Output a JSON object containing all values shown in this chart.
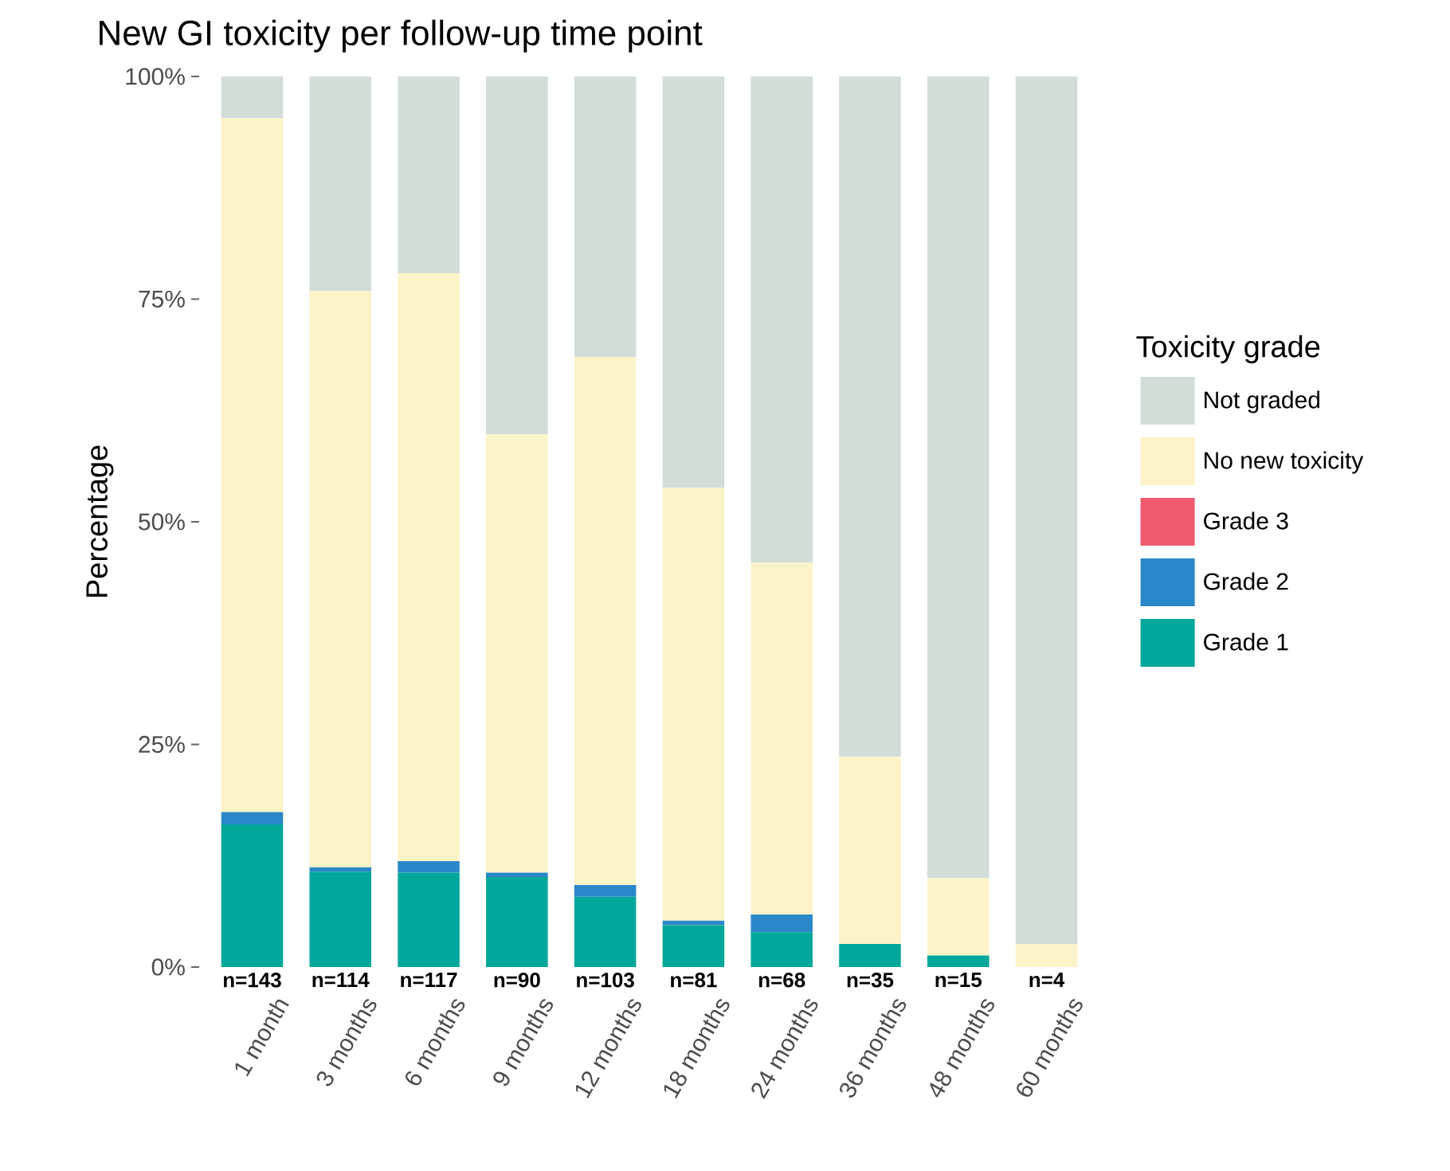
{
  "chart_data": {
    "type": "bar",
    "stacked": true,
    "title": "New GI toxicity per follow-up time point",
    "ylabel": "Percentage",
    "legend_title": "Toxicity grade",
    "legend": "right",
    "categories": [
      "1 month",
      "3 months",
      "6 months",
      "9 months",
      "12 months",
      "18 months",
      "24 months",
      "36 months",
      "48 months",
      "60 months"
    ],
    "series": [
      {
        "name": "Grade 1",
        "color": "#00a79a",
        "values": [
          16.0,
          10.7,
          10.6,
          10.1,
          7.9,
          4.7,
          3.9,
          2.6,
          1.3,
          0
        ]
      },
      {
        "name": "Grade 2",
        "color": "#2a88c8",
        "values": [
          1.4,
          0.5,
          1.3,
          0.5,
          1.3,
          0.5,
          2.0,
          0,
          0,
          0
        ]
      },
      {
        "name": "Grade 3",
        "color": "#f05a6e",
        "values": [
          0,
          0,
          0,
          0,
          0,
          0,
          0,
          0,
          0,
          0
        ]
      },
      {
        "name": "No new toxicity",
        "color": "#fdf3c8",
        "values": [
          77.9,
          64.7,
          66.0,
          49.2,
          59.3,
          48.6,
          39.5,
          21.0,
          8.7,
          2.6
        ]
      },
      {
        "name": "Not graded",
        "color": "#d3ddd7",
        "values": [
          4.7,
          24.1,
          22.1,
          40.2,
          31.5,
          46.2,
          54.6,
          76.4,
          90.0,
          97.4
        ]
      }
    ],
    "ylim": [
      0,
      100
    ],
    "yticks": [
      {
        "value": 0,
        "label": "0%"
      },
      {
        "value": 25,
        "label": "25%"
      },
      {
        "value": 50,
        "label": "50%"
      },
      {
        "value": 75,
        "label": "75%"
      },
      {
        "value": 100,
        "label": "100%"
      }
    ],
    "grid": false,
    "annotations": [
      "n=143",
      "n=114",
      "n=117",
      "n=90",
      "n=103",
      "n=81",
      "n=68",
      "n=35",
      "n=15",
      "n=4"
    ]
  }
}
